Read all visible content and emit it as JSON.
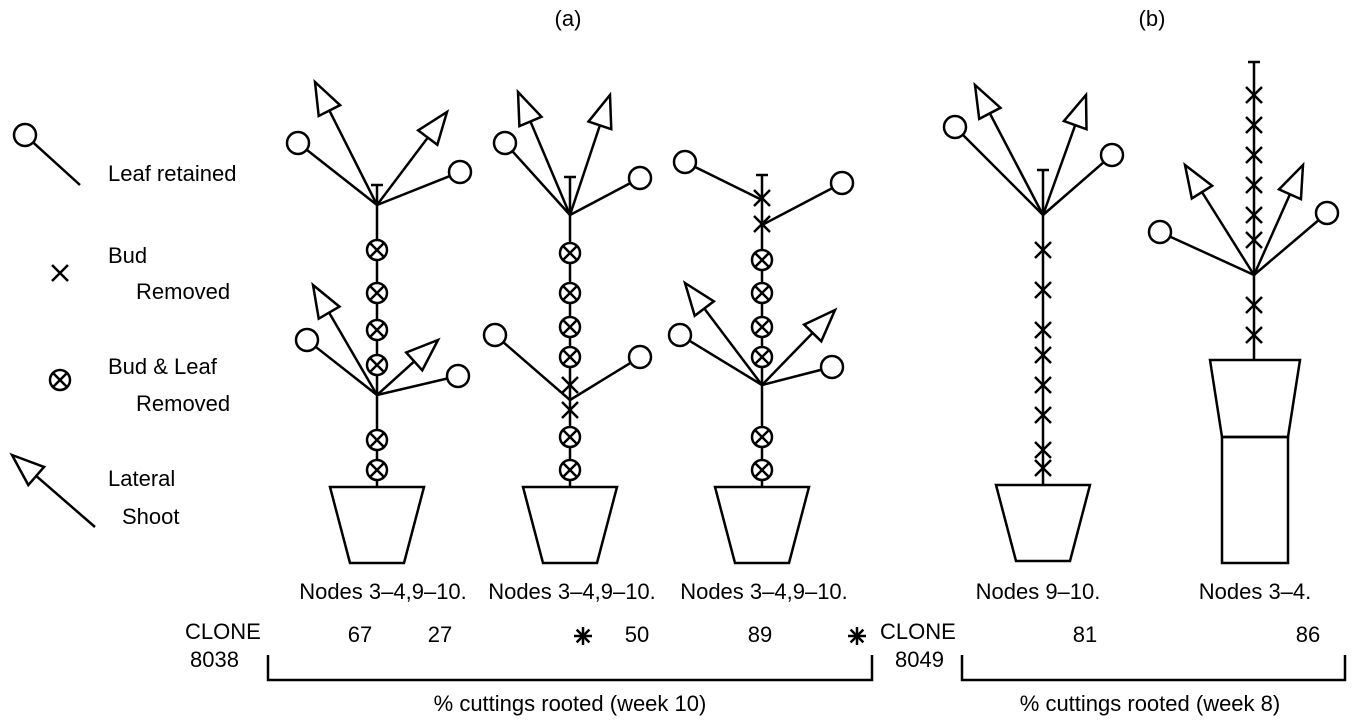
{
  "panels": [
    {
      "label": "(a)"
    },
    {
      "label": "(b)"
    }
  ],
  "legend": [
    {
      "lines": [
        "Leaf retained"
      ]
    },
    {
      "lines": [
        "Bud",
        "Removed"
      ]
    },
    {
      "lines": [
        "Bud & Leaf",
        "Removed"
      ]
    },
    {
      "lines": [
        "Lateral",
        "Shoot"
      ]
    }
  ],
  "plants": [
    {
      "label": "Nodes 3–4,9–10."
    },
    {
      "label": "Nodes 3–4,9–10."
    },
    {
      "label": "Nodes 3–4,9–10."
    },
    {
      "label": "Nodes 9–10."
    },
    {
      "label": "Nodes 3–4."
    }
  ],
  "clones": [
    {
      "name": "CLONE",
      "number": "8038",
      "results": [
        67,
        27,
        50,
        89
      ],
      "caption": "% cuttings rooted (week 10)"
    },
    {
      "name": "CLONE",
      "number": "8049",
      "results": [
        81,
        86
      ],
      "caption": "% cuttings rooted (week 8)"
    }
  ]
}
